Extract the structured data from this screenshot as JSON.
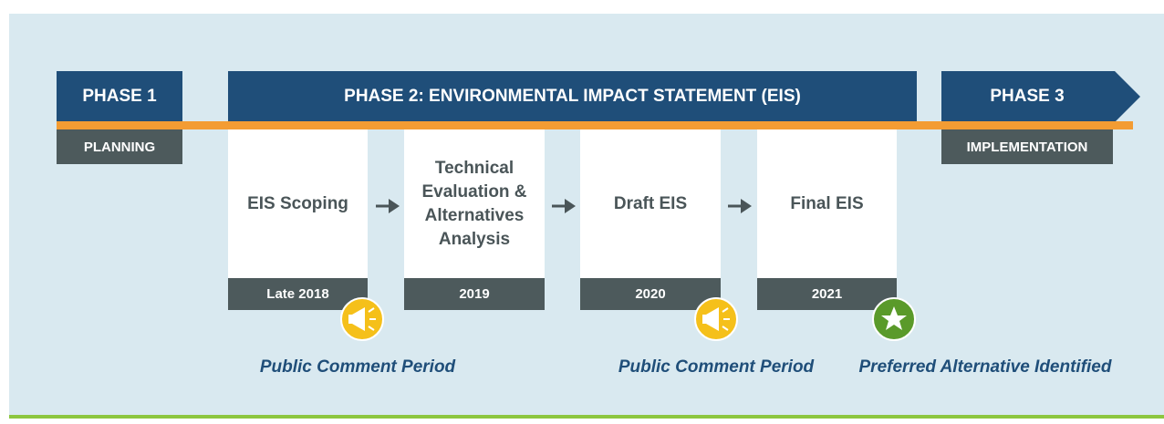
{
  "phases": [
    {
      "title": "PHASE 1",
      "subtitle": "PLANNING"
    },
    {
      "title": "PHASE 2: ENVIRONMENTAL IMPACT STATEMENT (EIS)"
    },
    {
      "title": "PHASE 3",
      "subtitle": "IMPLEMENTATION"
    }
  ],
  "steps": [
    {
      "label": "EIS Scoping",
      "date": "Late 2018"
    },
    {
      "label": "Technical Evaluation & Alternatives Analysis",
      "date": "2019"
    },
    {
      "label": "Draft EIS",
      "date": "2020"
    },
    {
      "label": "Final EIS",
      "date": "2021"
    }
  ],
  "notes": [
    "Public Comment Period",
    "Public Comment Period",
    "Preferred Alternative Identified"
  ]
}
